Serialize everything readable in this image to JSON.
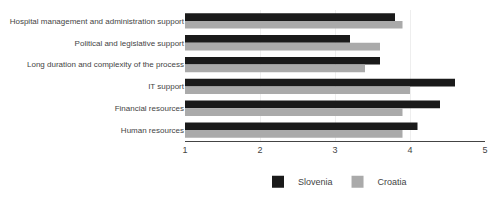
{
  "chart_data": {
    "type": "bar",
    "orientation": "horizontal",
    "categories": [
      "Hospital management and administration support",
      "Political and legislative support",
      "Long duration and complexity of the process",
      "IT support",
      "Financial resources",
      "Human resources"
    ],
    "series": [
      {
        "name": "Slovenia",
        "color": "#1a1a1a",
        "values": [
          3.8,
          3.2,
          3.6,
          4.6,
          4.4,
          4.1
        ]
      },
      {
        "name": "Croatia",
        "color": "#aaaaaa",
        "values": [
          3.9,
          3.6,
          3.4,
          4.0,
          3.9,
          3.9
        ]
      }
    ],
    "xlim": [
      1,
      5
    ],
    "xticks": [
      1,
      2,
      3,
      4,
      5
    ],
    "grid": true,
    "legend": "bottom"
  }
}
